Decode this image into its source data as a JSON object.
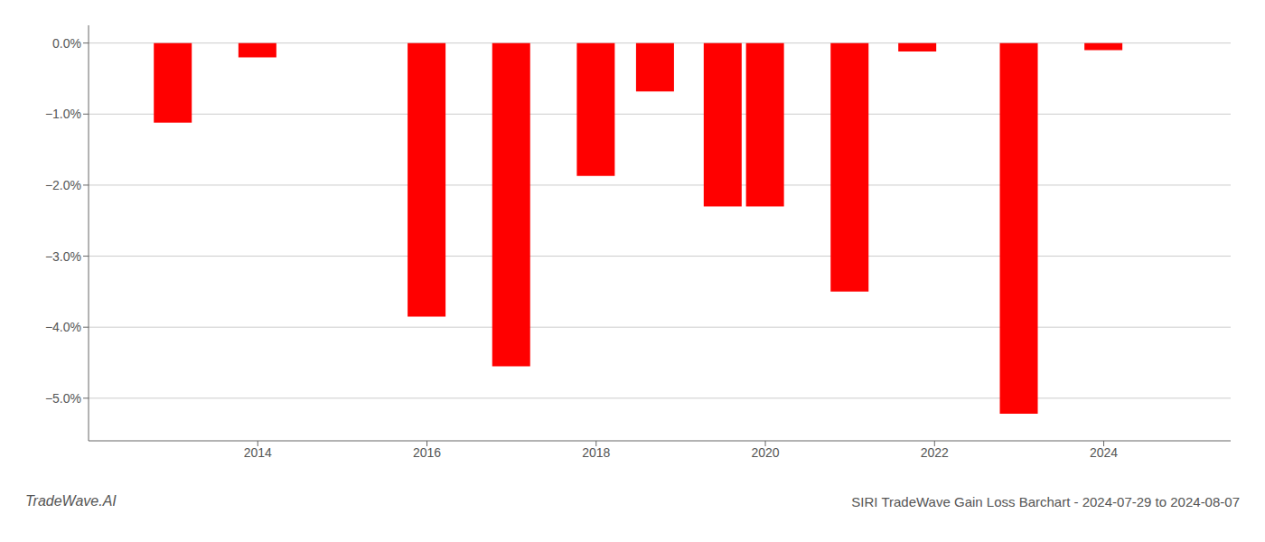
{
  "chart_data": {
    "type": "bar",
    "x": [
      2013,
      2014,
      2016,
      2017,
      2018,
      2018.7,
      2019.5,
      2020,
      2021,
      2021.8,
      2023,
      2024
    ],
    "values": [
      -1.12,
      -0.2,
      -3.85,
      -4.55,
      -1.87,
      -0.68,
      -2.3,
      -2.3,
      -3.5,
      -0.12,
      -5.22,
      -0.1
    ],
    "color": "#ff0000",
    "xlim": [
      2012.0,
      2025.5
    ],
    "xticks": [
      2014,
      2016,
      2018,
      2020,
      2022,
      2024
    ],
    "ylim": [
      -5.6,
      0.25
    ],
    "yticks": [
      {
        "value": 0.0,
        "label": "0.0%"
      },
      {
        "value": -1.0,
        "label": "−1.0%"
      },
      {
        "value": -2.0,
        "label": "−2.0%"
      },
      {
        "value": -3.0,
        "label": "−3.0%"
      },
      {
        "value": -4.0,
        "label": "−4.0%"
      },
      {
        "value": -5.0,
        "label": "−5.0%"
      }
    ],
    "grid": true,
    "annotations": [
      "TradeWave.AI",
      "SIRI TradeWave Gain Loss Barchart - 2024-07-29 to 2024-08-07"
    ]
  }
}
